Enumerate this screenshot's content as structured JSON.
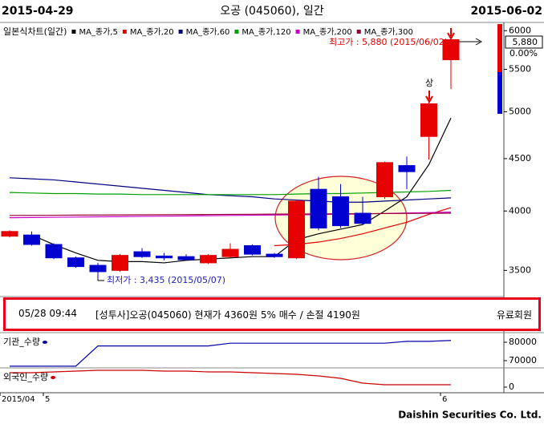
{
  "chart_data": [
    {
      "type": "candlestick",
      "title": "오공 (045060), 일간",
      "start_date": "2015-04-29",
      "end_date": "2015-06-02",
      "chart_label": "일본식차트(일간)",
      "categories": [
        "2015/04",
        null,
        "5",
        null,
        null,
        null,
        null,
        null,
        null,
        null,
        null,
        null,
        null,
        null,
        null,
        null,
        null,
        null,
        null,
        null,
        "6"
      ],
      "open": [
        3780,
        3790,
        3710,
        3600,
        3540,
        3500,
        3650,
        3615,
        3610,
        3560,
        3610,
        3700,
        3630,
        3600,
        4200,
        4130,
        3980,
        4130,
        4430,
        4730,
        5620
      ],
      "high": [
        3830,
        3820,
        3720,
        3610,
        3560,
        3630,
        3680,
        3640,
        3630,
        3630,
        3720,
        3710,
        3640,
        4100,
        4320,
        4250,
        4130,
        4470,
        4520,
        5120,
        5880
      ],
      "low": [
        3770,
        3700,
        3590,
        3520,
        3435,
        3490,
        3600,
        3580,
        3590,
        3550,
        3600,
        3620,
        3600,
        3590,
        3830,
        3850,
        3880,
        4110,
        4200,
        4490,
        5260
      ],
      "close": [
        3820,
        3710,
        3600,
        3530,
        3490,
        3620,
        3610,
        3600,
        3585,
        3620,
        3670,
        3630,
        3610,
        4090,
        3850,
        3870,
        3890,
        4460,
        4370,
        5090,
        5880
      ],
      "up_color": "#e60000",
      "down_color": "#0000d0",
      "ma": [
        {
          "name": "MA_종가,5",
          "color": "#000000",
          "values": [
            null,
            3790,
            3710,
            3640,
            3580,
            3570,
            3570,
            3560,
            3580,
            3590,
            3600,
            3610,
            3610,
            3750,
            3800,
            3840,
            3880,
            4000,
            4130,
            4440,
            4930
          ]
        },
        {
          "name": "MA_종가,20",
          "color": "#e00000",
          "values": [
            null,
            null,
            null,
            null,
            null,
            null,
            null,
            null,
            null,
            null,
            null,
            null,
            3700,
            3710,
            3730,
            3760,
            3800,
            3850,
            3900,
            3970,
            4030
          ]
        },
        {
          "name": "MA_종가,60",
          "color": "#000080",
          "values": [
            4310,
            4300,
            4290,
            4270,
            4250,
            4230,
            4210,
            4190,
            4170,
            4150,
            4140,
            4130,
            4110,
            4100,
            4090,
            4080,
            4080,
            4090,
            4100,
            4110,
            4120
          ]
        },
        {
          "name": "MA_종가,120",
          "color": "#00a000",
          "values": [
            4170,
            4165,
            4160,
            4160,
            4155,
            4155,
            4150,
            4150,
            4150,
            4150,
            4150,
            4150,
            4150,
            4155,
            4160,
            4160,
            4165,
            4170,
            4175,
            4180,
            4190
          ]
        },
        {
          "name": "MA_종가,200",
          "color": "#cc00cc",
          "values": [
            3940,
            3942,
            3944,
            3946,
            3948,
            3950,
            3952,
            3954,
            3956,
            3958,
            3960,
            3962,
            3964,
            3966,
            3968,
            3970,
            3974,
            3978,
            3982,
            3986,
            3990
          ]
        },
        {
          "name": "MA_종가,300",
          "color": "#990033",
          "values": [
            3960,
            3961,
            3962,
            3963,
            3964,
            3965,
            3966,
            3967,
            3968,
            3969,
            3970,
            3971,
            3972,
            3973,
            3974,
            3975,
            3976,
            3977,
            3978,
            3979,
            3980
          ]
        }
      ],
      "ylim": [
        3300,
        6090
      ],
      "yticks": [
        3500,
        4000,
        4500,
        5000,
        5500,
        6000
      ],
      "log_scale": true,
      "last_price_label": "5,880",
      "change_label": "0.00%",
      "annotations": {
        "high": "최고가 : 5,880 (2015/06/02)",
        "low": "최저가 : 3,435 (2015/05/07)",
        "signal": "상"
      }
    },
    {
      "type": "line",
      "series": [
        {
          "name": "기관_수량",
          "color": "#0000aa",
          "values": [
            67000,
            67000,
            67000,
            67000,
            78000,
            78000,
            78000,
            78000,
            78000,
            78000,
            79500,
            79500,
            79500,
            79500,
            79500,
            79500,
            79500,
            79500,
            80500,
            80500,
            81000
          ]
        }
      ],
      "ylim": [
        66500,
        84800
      ],
      "yticks": [
        70000,
        80000
      ]
    },
    {
      "type": "line",
      "series": [
        {
          "name": "외국인_수량",
          "color": "#cc0000",
          "values": [
            1800,
            1800,
            1900,
            2000,
            2100,
            2100,
            2100,
            2000,
            2000,
            1900,
            1900,
            1800,
            1700,
            1600,
            1400,
            1100,
            500,
            300,
            300,
            300,
            300
          ]
        }
      ],
      "ylim": [
        -700,
        2300
      ],
      "yticks": [
        0
      ]
    }
  ],
  "banner": {
    "time": "05/28 09:44",
    "message": "[성투사]오공(045060) 현재가 4360원 5% 매수 / 손절 4190원",
    "tag": "유료회원"
  },
  "footer": "Daishin Securities Co. Ltd."
}
